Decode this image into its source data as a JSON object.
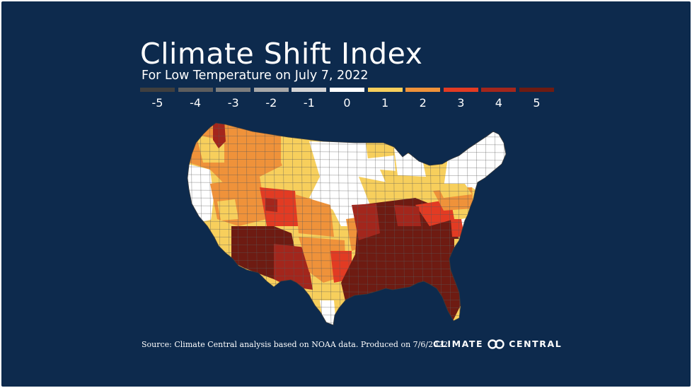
{
  "title": "Climate Shift Index",
  "subtitle": "For Low Temperature on July 7, 2022",
  "legend": [
    {
      "label": "-5",
      "color": "#3f3f3f"
    },
    {
      "label": "-4",
      "color": "#5d5d5d"
    },
    {
      "label": "-3",
      "color": "#7d7d7d"
    },
    {
      "label": "-2",
      "color": "#a8a8a8"
    },
    {
      "label": "-1",
      "color": "#d4d4d4"
    },
    {
      "label": "0",
      "color": "#ffffff"
    },
    {
      "label": "1",
      "color": "#f7cf5c"
    },
    {
      "label": "2",
      "color": "#ef923a"
    },
    {
      "label": "3",
      "color": "#e23b23"
    },
    {
      "label": "4",
      "color": "#a3261c"
    },
    {
      "label": "5",
      "color": "#6e1b12"
    }
  ],
  "map": {
    "region": "Contiguous United States",
    "value_colors": {
      "0": "#ffffff",
      "1": "#f7cf5c",
      "2": "#ef923a",
      "3": "#e23b23",
      "4": "#a3261c",
      "5": "#6e1b12"
    },
    "border_color": "#5a5a5a"
  },
  "source": "Source: Climate Central analysis based on NOAA data. Produced on 7/6/2022.",
  "logo": {
    "text_left": "CLIMATE",
    "text_right": "CENTRAL"
  },
  "colors": {
    "background": "#0d2a4d",
    "text": "#ffffff"
  }
}
